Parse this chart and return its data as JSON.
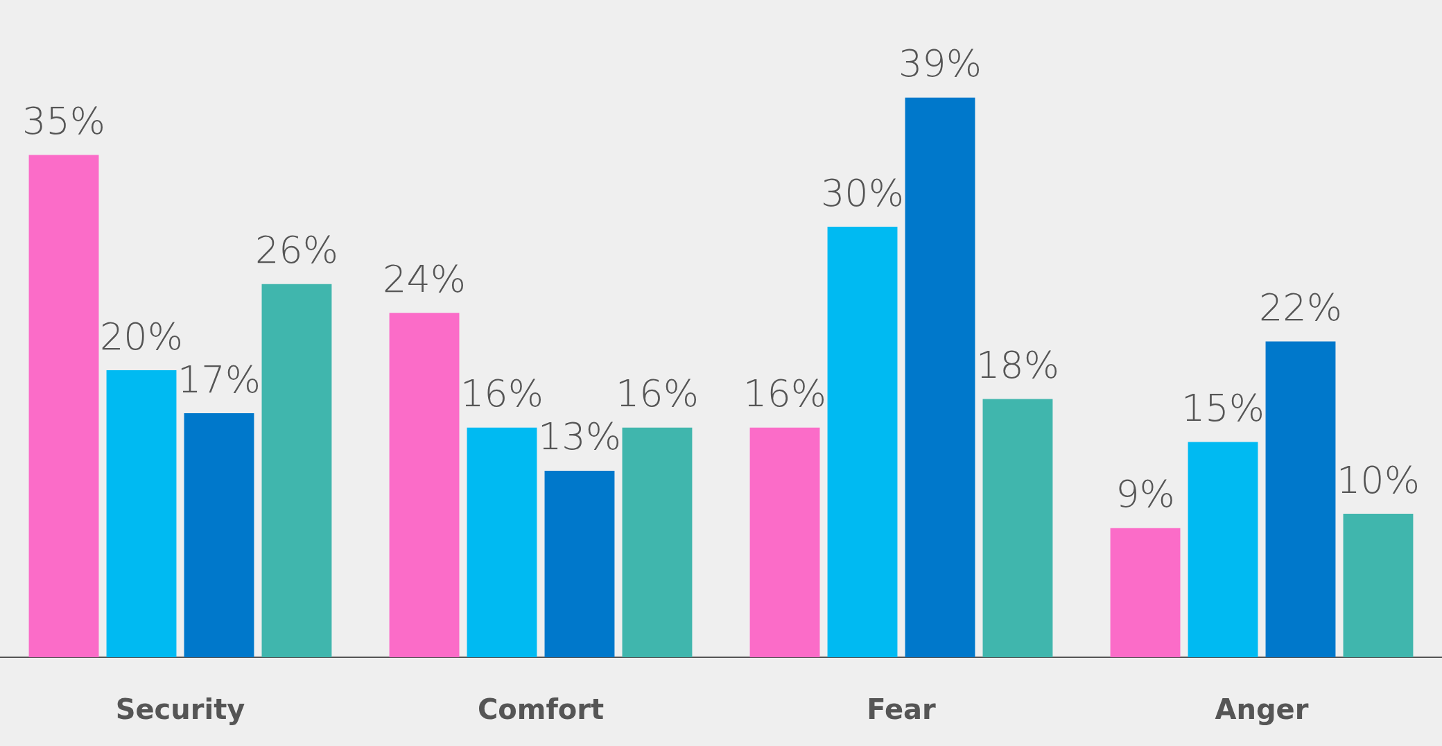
{
  "chart_data": {
    "type": "bar",
    "categories": [
      "Security",
      "Comfort",
      "Fear",
      "Anger"
    ],
    "series": [
      {
        "color": "#fb6cc8",
        "values": [
          35,
          24,
          16,
          9
        ],
        "value_labels": [
          "35%",
          "24%",
          "16%",
          "9%"
        ]
      },
      {
        "color": "#00baf2",
        "values": [
          20,
          16,
          30,
          15
        ],
        "value_labels": [
          "20%",
          "16%",
          "30%",
          "15%"
        ]
      },
      {
        "color": "#0078cb",
        "values": [
          17,
          13,
          39,
          22
        ],
        "value_labels": [
          "17%",
          "13%",
          "39%",
          "22%"
        ]
      },
      {
        "color": "#40b6ad",
        "values": [
          26,
          16,
          18,
          10
        ],
        "value_labels": [
          "26%",
          "16%",
          "18%",
          "10%"
        ]
      }
    ]
  }
}
